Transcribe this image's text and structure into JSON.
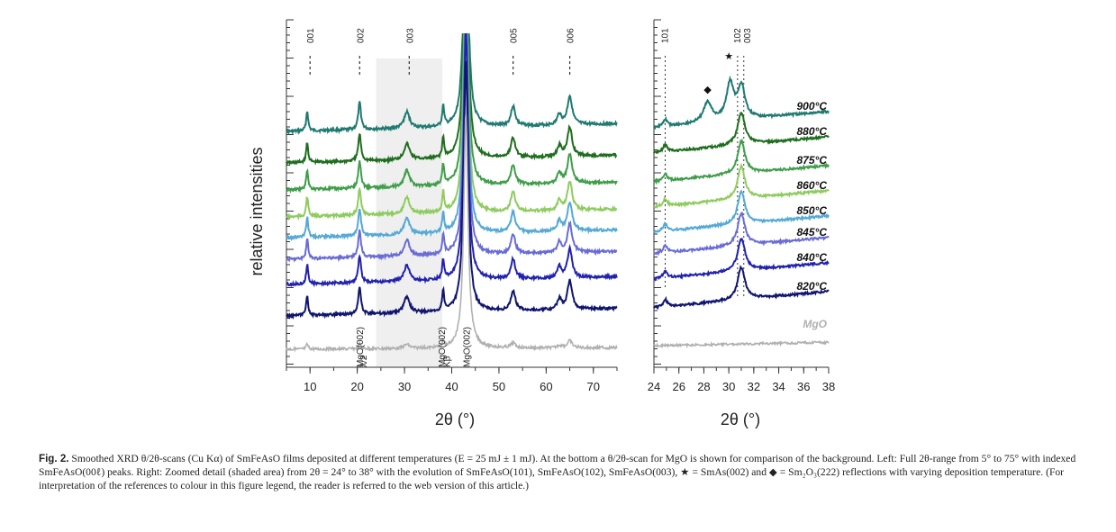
{
  "chart_data": [
    {
      "type": "line",
      "panel": "left",
      "ylabel": "relative intensities",
      "xlabel": "2θ (°)",
      "xlim": [
        5,
        75
      ],
      "xticks": [
        "10",
        "20",
        "30",
        "40",
        "50",
        "60",
        "70"
      ],
      "shaded_range": [
        24,
        38
      ],
      "peak_markers": [
        {
          "label": "001",
          "x": 10.0
        },
        {
          "label": "002",
          "x": 20.5
        },
        {
          "label": "003",
          "x": 31.0
        },
        {
          "label": "005",
          "x": 53.0
        },
        {
          "label": "006",
          "x": 65.0
        }
      ],
      "substrate_labels": [
        {
          "label": "MgO(002)",
          "x": 20.6
        },
        {
          "label": "λ/2",
          "x": 21.4
        },
        {
          "label": "MgO(002)",
          "x": 38.0
        },
        {
          "label": "Kβ",
          "x": 39.0
        },
        {
          "label": "MgO(002)",
          "x": 43.2
        }
      ],
      "series": [
        {
          "name": "900°C",
          "color": "#1f7a72"
        },
        {
          "name": "880°C",
          "color": "#1f6e1f"
        },
        {
          "name": "875°C",
          "color": "#3f9e4a"
        },
        {
          "name": "860°C",
          "color": "#8fcc5f"
        },
        {
          "name": "850°C",
          "color": "#55a9d6"
        },
        {
          "name": "845°C",
          "color": "#6a6cd6"
        },
        {
          "name": "840°C",
          "color": "#2222b0"
        },
        {
          "name": "820°C",
          "color": "#101570"
        },
        {
          "name": "MgO",
          "color": "#b0b0b0"
        }
      ]
    },
    {
      "type": "line",
      "panel": "right",
      "xlabel": "2θ (°)",
      "xlim": [
        24,
        38
      ],
      "xticks": [
        "24",
        "26",
        "28",
        "30",
        "32",
        "34",
        "36",
        "38"
      ],
      "peak_markers": [
        {
          "label": "101",
          "x": 24.9
        },
        {
          "label": "102",
          "x": 30.7
        },
        {
          "label": "003",
          "x": 31.2
        }
      ],
      "symbols": [
        {
          "label": "★",
          "x": 30.0
        },
        {
          "label": "◆",
          "x": 28.3
        }
      ]
    }
  ],
  "caption": {
    "figure_label": "Fig. 2.",
    "text": "Smoothed XRD θ/2θ-scans (Cu Kα) of SmFeAsO films deposited at different temperatures (E = 25 mJ ± 1 mJ). At the bottom a θ/2θ-scan for MgO is shown for comparison of the background. Left: Full 2θ-range from 5° to 75° with indexed SmFeAsO(00ℓ) peaks. Right: Zoomed detail (shaded area) from 2θ = 24° to 38° with the evolution of SmFeAsO(101), SmFeAsO(102), SmFeAsO(003), ★ = SmAs(002) and ◆ = Sm₂O₃(222) reflections with varying deposition temperature. (For interpretation of the references to colour in this figure legend, the reader is referred to the web version of this article.)"
  }
}
